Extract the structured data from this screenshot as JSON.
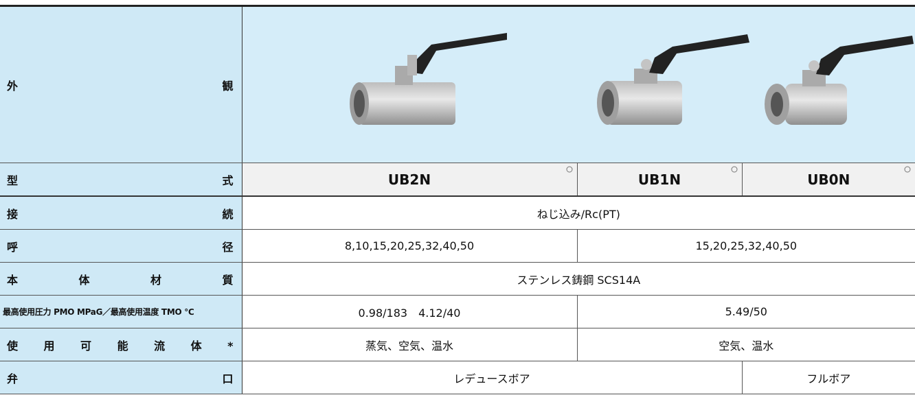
{
  "table": {
    "rows": [
      {
        "label": "外観"
      },
      {
        "label": "型式",
        "cells": [
          "UB2N",
          "UB1N",
          "UB0N"
        ]
      },
      {
        "label": "接続",
        "cells": [
          "ねじ込み/Rc(PT)"
        ]
      },
      {
        "label": "呼径",
        "cells": [
          "8,10,15,20,25,32,40,50",
          "15,20,25,32,40,50"
        ]
      },
      {
        "label": "本体材質",
        "cells": [
          "ステンレス鋳鋼 SCS14A"
        ]
      },
      {
        "label": "最高使用圧力 PMO MPaG／最高使用温度 TMO ℃",
        "cells": [
          "0.98/183　4.12/40",
          "5.49/50"
        ]
      },
      {
        "label": "使用可能流体*",
        "cells": [
          "蒸気、空気、温水",
          "空気、温水"
        ]
      },
      {
        "label": "弁口",
        "cells": [
          "レデュースボア",
          "フルボア"
        ]
      }
    ]
  }
}
